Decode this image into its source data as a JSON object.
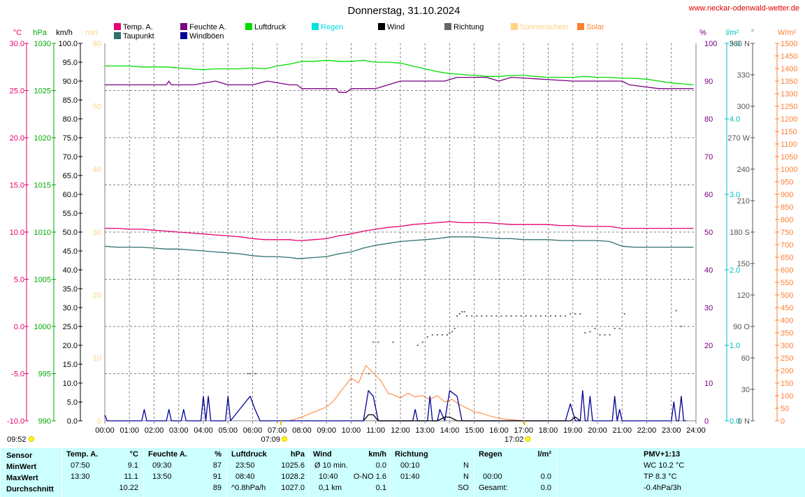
{
  "header": {
    "title": "Donnerstag, 31.10.2024",
    "site": "www.neckar-odenwald-wetter.de"
  },
  "legend": [
    {
      "label": "Temp. A.",
      "color": "#e6006e"
    },
    {
      "label": "Taupunkt",
      "color": "#2e6f6f"
    },
    {
      "label": "Feuchte A.",
      "color": "#7a0080"
    },
    {
      "label": "Windböen",
      "color": "#000099"
    },
    {
      "label": "Luftdruck",
      "color": "#00dd00"
    },
    {
      "label": "Regen",
      "color": "#00e0e0"
    },
    {
      "label": "Wind",
      "color": "#000000"
    },
    {
      "label": "Richtung",
      "color": "#666666"
    },
    {
      "label": "Sonnenschein",
      "color": "#ffd27f"
    },
    {
      "label": "Solar",
      "color": "#ff7f30"
    }
  ],
  "axis_units": {
    "temp": "°C",
    "pressure": "hPa",
    "wind": "km/h",
    "sun": "min",
    "humidity": "%",
    "rain": "l/m²",
    "direction": "°",
    "solar": "W/m²"
  },
  "colors": {
    "temp": "#e6006e",
    "dew": "#2e6f6f",
    "humidity": "#7a0080",
    "gust": "#000099",
    "pressure": "#00dd00",
    "rain": "#00e0e0",
    "wind": "#000000",
    "direction": "#666666",
    "sun": "#ffd27f",
    "solar": "#ff7f30",
    "footer_bg": "#ccffff",
    "sun_marker": "#ffff00"
  },
  "chart_data": {
    "type": "line",
    "x_range_hours": [
      0,
      24
    ],
    "x_ticks": [
      "00:00",
      "01:00",
      "02:00",
      "03:00",
      "04:00",
      "05:00",
      "06:00",
      "07:00",
      "08:00",
      "09:00",
      "10:00",
      "11:00",
      "12:00",
      "13:00",
      "14:00",
      "15:00",
      "16:00",
      "17:00",
      "18:00",
      "19:00",
      "20:00",
      "21:00",
      "22:00",
      "23:00",
      "24:00"
    ],
    "axes": {
      "temp": {
        "range": [
          -10,
          30
        ],
        "ticks": [
          "30.0",
          "25.0",
          "20.0",
          "15.0",
          "10.0",
          "5.0",
          "0.0",
          "-5.0",
          "-10.0"
        ]
      },
      "pressure": {
        "range": [
          990,
          1030
        ],
        "ticks": [
          "1030",
          "1025",
          "1020",
          "1015",
          "1010",
          "1005",
          "1000",
          "995",
          "990"
        ]
      },
      "wind": {
        "range": [
          0,
          100
        ],
        "ticks": [
          "100.0",
          "95.0",
          "90.0",
          "85.0",
          "80.0",
          "75.0",
          "70.0",
          "65.0",
          "60.0",
          "55.0",
          "50.0",
          "45.0",
          "40.0",
          "35.0",
          "30.0",
          "25.0",
          "20.0",
          "15.0",
          "10.0",
          "5.0",
          "0.0"
        ]
      },
      "sun": {
        "range": [
          0,
          60
        ],
        "ticks": [
          "60",
          "50",
          "40",
          "30",
          "20",
          "10",
          "0"
        ]
      },
      "humidity": {
        "range": [
          0,
          100
        ],
        "ticks": [
          "100",
          "90",
          "80",
          "70",
          "60",
          "50",
          "40",
          "30",
          "20",
          "10",
          "0"
        ]
      },
      "rain": {
        "range": [
          0,
          5
        ],
        "ticks": [
          "5.0",
          "4.0",
          "3.0",
          "2.0",
          "1.0",
          "0.0"
        ]
      },
      "direction": {
        "range": [
          0,
          360
        ],
        "ticks": [
          "360 N",
          "330",
          "300",
          "270 W",
          "240",
          "210",
          "180 S",
          "150",
          "120",
          "90 O",
          "60",
          "30",
          "0 N"
        ]
      },
      "solar": {
        "range": [
          0,
          1500
        ],
        "ticks": [
          "1500",
          "1450",
          "1400",
          "1350",
          "1300",
          "1250",
          "1200",
          "1150",
          "1100",
          "1050",
          "1000",
          "950",
          "900",
          "850",
          "800",
          "750",
          "700",
          "650",
          "600",
          "550",
          "500",
          "450",
          "400",
          "350",
          "300",
          "250",
          "200",
          "150",
          "100",
          "50",
          "0"
        ]
      }
    },
    "series": [
      {
        "name": "Luftdruck",
        "axis": "pressure",
        "x": [
          0,
          0.5,
          1,
          1.5,
          2,
          2.5,
          3,
          3.5,
          4,
          4.5,
          5,
          5.5,
          6,
          6.5,
          7,
          7.5,
          8,
          8.5,
          9,
          9.5,
          10,
          10.5,
          11,
          11.5,
          12,
          12.5,
          13,
          13.5,
          14,
          14.5,
          15,
          15.5,
          16,
          16.5,
          17,
          17.5,
          18,
          18.5,
          19,
          19.5,
          20,
          20.5,
          21,
          21.5,
          22,
          22.5,
          23,
          23.5,
          23.9
        ],
        "y": [
          1027.6,
          1027.6,
          1027.6,
          1027.5,
          1027.5,
          1027.5,
          1027.4,
          1027.3,
          1027.2,
          1027.3,
          1027.3,
          1027.3,
          1027.4,
          1027.3,
          1027.6,
          1027.8,
          1028.1,
          1028.1,
          1028.2,
          1028.1,
          1028.1,
          1028.2,
          1028.0,
          1028.0,
          1027.9,
          1027.6,
          1027.3,
          1027.0,
          1026.8,
          1026.7,
          1026.6,
          1026.5,
          1026.5,
          1026.6,
          1026.6,
          1026.5,
          1026.4,
          1026.4,
          1026.4,
          1026.5,
          1026.4,
          1026.4,
          1026.3,
          1026.3,
          1026.2,
          1026.0,
          1025.8,
          1025.7,
          1025.6
        ]
      },
      {
        "name": "Feuchte A.",
        "axis": "humidity",
        "x": [
          0,
          2.5,
          2.6,
          2.7,
          3.6,
          4.5,
          5,
          6,
          6.6,
          7.5,
          7.8,
          8.0,
          8.2,
          9.4,
          9.5,
          9.8,
          10,
          10.5,
          11,
          11.5,
          12,
          13,
          13.8,
          14.3,
          15.5,
          16,
          16.5,
          19,
          20,
          21,
          21.3,
          22.5,
          23.9
        ],
        "y": [
          89,
          89,
          90,
          89,
          89,
          90,
          89,
          89,
          90,
          89,
          89,
          88,
          88,
          88,
          87,
          87,
          88,
          88,
          88,
          89,
          90,
          90,
          90,
          91,
          91,
          90,
          91,
          90,
          90,
          90,
          89,
          88,
          88
        ]
      },
      {
        "name": "Temp. A.",
        "axis": "temp",
        "x": [
          0,
          0.5,
          1,
          1.5,
          2,
          2.5,
          3,
          3.5,
          4,
          4.5,
          5,
          5.5,
          6,
          6.5,
          7,
          7.5,
          7.8,
          8,
          8.5,
          9,
          9.5,
          10,
          10.5,
          11,
          11.5,
          12,
          12.5,
          13,
          13.5,
          14,
          14.5,
          15,
          15.5,
          16,
          16.5,
          17,
          17.5,
          18,
          18.5,
          19,
          19.5,
          20,
          20.5,
          21,
          21.5,
          22,
          22.5,
          23,
          23.5,
          23.9
        ],
        "y": [
          10.4,
          10.4,
          10.3,
          10.3,
          10.2,
          10.1,
          10.0,
          9.9,
          9.8,
          9.7,
          9.6,
          9.5,
          9.3,
          9.2,
          9.2,
          9.2,
          9.1,
          9.1,
          9.2,
          9.3,
          9.6,
          9.8,
          10.1,
          10.3,
          10.5,
          10.6,
          10.8,
          10.9,
          11.0,
          11.1,
          11.0,
          11.0,
          11.0,
          10.9,
          10.8,
          10.8,
          10.8,
          10.8,
          10.7,
          10.7,
          10.6,
          10.6,
          10.6,
          10.4,
          10.4,
          10.4,
          10.4,
          10.4,
          10.4,
          10.4
        ]
      },
      {
        "name": "Taupunkt",
        "axis": "temp",
        "x": [
          0,
          0.5,
          1,
          1.5,
          2,
          2.5,
          3,
          3.5,
          4,
          4.5,
          5,
          5.5,
          6,
          6.5,
          7,
          7.5,
          7.8,
          8,
          8.5,
          9,
          9.5,
          10,
          10.5,
          11,
          11.5,
          12,
          12.5,
          13,
          13.5,
          14,
          14.5,
          15,
          15.5,
          16,
          16.5,
          17,
          17.5,
          18,
          18.5,
          19,
          19.5,
          20,
          20.5,
          21,
          21.5,
          22,
          22.5,
          23,
          23.5,
          23.9
        ],
        "y": [
          8.5,
          8.4,
          8.4,
          8.4,
          8.3,
          8.2,
          8.2,
          8.1,
          8.0,
          7.9,
          7.8,
          7.7,
          7.5,
          7.4,
          7.4,
          7.3,
          7.2,
          7.2,
          7.3,
          7.4,
          7.7,
          7.9,
          8.3,
          8.6,
          8.8,
          9.0,
          9.1,
          9.2,
          9.3,
          9.5,
          9.5,
          9.5,
          9.4,
          9.3,
          9.3,
          9.2,
          9.2,
          9.2,
          9.1,
          9.1,
          9.1,
          9.1,
          9.0,
          8.5,
          8.4,
          8.4,
          8.4,
          8.4,
          8.4,
          8.4
        ]
      },
      {
        "name": "Solar",
        "axis": "solar",
        "x": [
          7.5,
          8,
          8.5,
          9,
          9.3,
          9.6,
          10,
          10.3,
          10.6,
          10.8,
          11,
          11.2,
          11.5,
          11.8,
          12,
          12.3,
          12.6,
          12.9,
          13.2,
          13.5,
          13.8,
          14.1,
          14.4,
          14.7,
          15,
          15.3,
          15.6,
          16,
          16.4,
          16.8,
          17.0
        ],
        "y": [
          0,
          15,
          35,
          55,
          80,
          120,
          170,
          150,
          220,
          200,
          180,
          160,
          110,
          100,
          90,
          110,
          95,
          100,
          85,
          100,
          75,
          85,
          65,
          50,
          35,
          30,
          20,
          10,
          5,
          2,
          0
        ]
      },
      {
        "name": "Windböen",
        "axis": "wind",
        "x": [
          0,
          0.1,
          0.3,
          1.5,
          1.6,
          1.7,
          2.5,
          2.6,
          2.7,
          3.1,
          3.2,
          3.3,
          3.9,
          4,
          4.1,
          4.2,
          4.3,
          4.4,
          4.9,
          5.0,
          5.1,
          5.9,
          6.1,
          6.3,
          10.5,
          10.7,
          10.9,
          11.1,
          11.3,
          12.5,
          12.6,
          12.7,
          13.1,
          13.2,
          13.3,
          13.4,
          13.5,
          13.6,
          13.8,
          14.0,
          14.3,
          14.5,
          18.7,
          18.9,
          19.1,
          19.3,
          19.4,
          19.5,
          19.6,
          19.7,
          19.8,
          19.9,
          20.0,
          20.6,
          20.7,
          20.8,
          20.9,
          21.0,
          21.1,
          23.0,
          23.1,
          23.2,
          23.3,
          23.4,
          23.5,
          23.6
        ],
        "y": [
          1.5,
          0,
          0,
          0,
          3,
          0,
          0,
          3,
          0,
          0,
          3,
          0,
          0,
          6.5,
          0,
          6.5,
          0,
          0,
          0,
          6.5,
          0,
          6.5,
          3,
          0,
          0,
          8,
          6.5,
          0,
          0,
          0,
          3,
          0,
          0,
          6.5,
          0,
          0,
          0,
          3,
          0,
          8,
          6.5,
          0,
          0,
          4.5,
          0,
          0,
          8,
          0,
          0,
          6.5,
          0,
          0,
          0,
          0,
          6.5,
          0,
          3,
          0,
          0,
          0,
          5,
          0,
          0,
          6.5,
          0,
          0
        ]
      },
      {
        "name": "Wind",
        "axis": "wind",
        "x": [
          10.5,
          10.7,
          10.9,
          11.1,
          13.5,
          13.8,
          14.0,
          14.3,
          18.9,
          19.1,
          19.3
        ],
        "y": [
          0,
          1.6,
          1.6,
          0,
          0,
          1.0,
          1.0,
          0,
          0,
          1.0,
          0
        ]
      },
      {
        "name": "Richtung",
        "axis": "direction",
        "style": "dots",
        "x": [
          5.8,
          5.9,
          6.1,
          10.7,
          10.9,
          11.1,
          11.7,
          12.7,
          12.9,
          13.1,
          13.3,
          13.5,
          13.7,
          13.9,
          14.0,
          14.1,
          14.2,
          14.3,
          14.4,
          14.5,
          14.6,
          14.7,
          14.9,
          15.1,
          15.3,
          15.5,
          15.7,
          15.9,
          16.1,
          16.3,
          16.5,
          16.7,
          16.9,
          17.1,
          17.3,
          17.5,
          17.7,
          17.9,
          18.1,
          18.3,
          18.5,
          18.7,
          18.9,
          19.1,
          19.3,
          19.5,
          19.7,
          19.9,
          20.1,
          20.3,
          20.5,
          20.7,
          20.9,
          21.1,
          23.2,
          23.4
        ],
        "y": [
          45,
          45,
          45,
          45,
          75,
          75,
          75,
          72,
          75,
          80,
          82,
          82,
          82,
          82,
          84,
          85,
          88,
          100,
          102,
          104,
          104,
          100,
          100,
          100,
          100,
          100,
          100,
          100,
          100,
          100,
          100,
          100,
          100,
          100,
          100,
          100,
          100,
          100,
          100,
          100,
          100,
          100,
          102,
          102,
          102,
          84,
          85,
          88,
          82,
          82,
          82,
          88,
          88,
          102,
          105,
          90
        ]
      }
    ]
  },
  "sun_markers": {
    "start": "09:52",
    "sunrise": "07:09",
    "sunset": "17:02"
  },
  "footer": {
    "headers": [
      "Sensor",
      "Temp. A.",
      "°C",
      "Feuchte A.",
      "%",
      "Luftdruck",
      "hPa",
      "Wind",
      "km/h",
      "Richtung",
      "Regen",
      "l/m²",
      "PMV+1:13"
    ],
    "rows": [
      {
        "label": "MinWert",
        "temp_time": "07:50",
        "temp": "9.1",
        "hum_time": "09:30",
        "hum": "87",
        "press_time": "23:50",
        "press": "1025.6",
        "wind_label": "Ø 10 min.",
        "wind": "0.0",
        "dir_time": "00:10",
        "dir": "N",
        "rain_time": "",
        "rain": "",
        "extra": "WC 10.2 °C"
      },
      {
        "label": "MaxWert",
        "temp_time": "13:30",
        "temp": "11.1",
        "hum_time": "13:50",
        "hum": "91",
        "press_time": "08:40",
        "press": "1028.2",
        "wind_label": "10:40",
        "wind": "O-NO 1.6",
        "dir_time": "01:40",
        "dir": "N",
        "rain_time": "00:00",
        "rain": "0.0",
        "extra": "TP 8.3 °C"
      },
      {
        "label": "Durchschnitt",
        "temp_time": "",
        "temp": "10.22",
        "hum_time": "",
        "hum": "89",
        "press_time": "^0.8hPa/h",
        "press": "1027.0",
        "wind_label": "0,1 km",
        "wind": "0.1",
        "dir_time": "",
        "dir": "SO",
        "rain_time": "Gesamt:",
        "rain": "0.0",
        "extra": "-0.4hPa/3h"
      }
    ]
  }
}
